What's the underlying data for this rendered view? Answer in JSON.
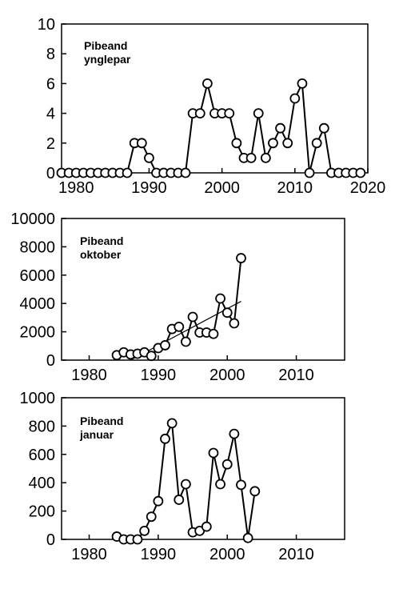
{
  "chart_data": [
    {
      "type": "line",
      "title_lines": [
        "Pibeand",
        "ynglepar"
      ],
      "xlabel": "",
      "ylabel": "",
      "xlim": [
        1978,
        2020
      ],
      "ylim": [
        0,
        10
      ],
      "x_ticks": [
        1980,
        1990,
        2000,
        2010,
        2020
      ],
      "y_ticks": [
        0,
        2,
        4,
        6,
        8,
        10
      ],
      "series": [
        {
          "x": [
            1978,
            1979,
            1980,
            1981,
            1982,
            1983,
            1984,
            1985,
            1986,
            1987,
            1988,
            1989,
            1990,
            1991,
            1992,
            1993,
            1994,
            1995,
            1996,
            1997,
            1998,
            1999,
            2000,
            2001,
            2002,
            2003,
            2004,
            2005,
            2006,
            2007,
            2008,
            2009,
            2010,
            2011,
            2012,
            2013,
            2014,
            2015,
            2016,
            2017,
            2018,
            2019
          ],
          "y": [
            0,
            0,
            0,
            0,
            0,
            0,
            0,
            0,
            0,
            0,
            2,
            2,
            1,
            0,
            0,
            0,
            0,
            0,
            4,
            4,
            6,
            4,
            4,
            4,
            2,
            1,
            1,
            4,
            1,
            2,
            3,
            2,
            5,
            6,
            0,
            2,
            3,
            0,
            0,
            0,
            0,
            0
          ]
        }
      ],
      "trend": null,
      "grid": false,
      "legend": "none"
    },
    {
      "type": "line",
      "title_lines": [
        "Pibeand",
        "oktober"
      ],
      "xlabel": "",
      "ylabel": "",
      "xlim": [
        1976,
        2017
      ],
      "ylim": [
        0,
        10000
      ],
      "x_ticks": [
        1980,
        1990,
        2000,
        2010
      ],
      "y_ticks": [
        0,
        2000,
        4000,
        6000,
        8000,
        10000
      ],
      "series": [
        {
          "x": [
            1984,
            1985,
            1986,
            1987,
            1988,
            1989,
            1990,
            1991,
            1992,
            1993,
            1994,
            1995,
            1996,
            1997,
            1998,
            1999,
            2000,
            2001,
            2002
          ],
          "y": [
            350,
            550,
            400,
            450,
            550,
            300,
            850,
            1050,
            2200,
            2350,
            1300,
            3050,
            1950,
            1950,
            1850,
            4350,
            3350,
            2600,
            7200
          ]
        }
      ],
      "trend": {
        "x": [
          1986,
          2002
        ],
        "y": [
          0,
          4150
        ]
      },
      "grid": false,
      "legend": "none"
    },
    {
      "type": "line",
      "title_lines": [
        "Pibeand",
        "januar"
      ],
      "xlabel": "",
      "ylabel": "",
      "xlim": [
        1976,
        2017
      ],
      "ylim": [
        0,
        1000
      ],
      "x_ticks": [
        1980,
        1990,
        2000,
        2010
      ],
      "y_ticks": [
        0,
        200,
        400,
        600,
        800,
        1000
      ],
      "series": [
        {
          "x": [
            1984,
            1985,
            1986,
            1987,
            1988,
            1989,
            1990,
            1991,
            1992,
            1993,
            1994,
            1995,
            1996,
            1997,
            1998,
            1999,
            2000,
            2001,
            2002,
            2003,
            2004
          ],
          "y": [
            20,
            0,
            0,
            0,
            60,
            160,
            270,
            710,
            820,
            280,
            390,
            50,
            60,
            90,
            610,
            390,
            530,
            745,
            385,
            10,
            340
          ]
        }
      ],
      "trend": null,
      "grid": false,
      "legend": "none"
    }
  ]
}
